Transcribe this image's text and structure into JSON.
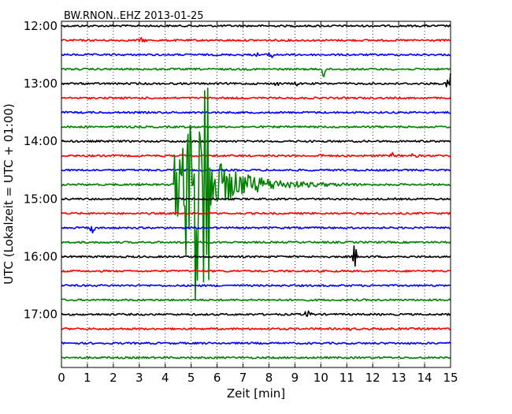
{
  "chart_data": {
    "type": "line",
    "title": "BW.RNON..EHZ 2013-01-25",
    "xlabel": "Zeit  [min]",
    "ylabel": "UTC (Lokalzeit = UTC + 01:00)",
    "xlim": [
      0,
      15
    ],
    "x_ticks": [
      0,
      1,
      2,
      3,
      4,
      5,
      6,
      7,
      8,
      9,
      10,
      11,
      12,
      13,
      14,
      15
    ],
    "ylim_hours": [
      11.92,
      17.92
    ],
    "y_ticks": [
      {
        "hour": 12,
        "label": "12:00"
      },
      {
        "hour": 13,
        "label": "13:00"
      },
      {
        "hour": 14,
        "label": "14:00"
      },
      {
        "hour": 15,
        "label": "15:00"
      },
      {
        "hour": 16,
        "label": "16:00"
      },
      {
        "hour": 17,
        "label": "17:00"
      }
    ],
    "grid": "vertical dotted",
    "trace_interval_min": 15,
    "trace_colors": [
      "#000000",
      "#ff0000",
      "#0000ff",
      "#008000"
    ],
    "trace_start_hour": 12,
    "trace_count": 24,
    "events": [
      {
        "trace": 1,
        "x": 3.1,
        "amp": 0.4,
        "dur": 0.3
      },
      {
        "trace": 2,
        "x": 8.1,
        "amp": 1.3,
        "dur": 0.15
      },
      {
        "trace": 2,
        "x": 7.6,
        "amp": 0.4,
        "dur": 0.2
      },
      {
        "trace": 3,
        "x": 10.1,
        "amp": 1.6,
        "dur": 0.12
      },
      {
        "trace": 4,
        "x": 14.95,
        "amp": 2.2,
        "dur": 0.15
      },
      {
        "trace": 4,
        "x": 8.3,
        "amp": 0.4,
        "dur": 0.2
      },
      {
        "trace": 4,
        "x": 9.1,
        "amp": 0.4,
        "dur": 0.2
      },
      {
        "trace": 9,
        "x": 12.75,
        "amp": 0.8,
        "dur": 0.1
      },
      {
        "trace": 9,
        "x": 13.6,
        "amp": 0.5,
        "dur": 0.2
      },
      {
        "trace": 9,
        "x": 10.0,
        "amp": 0.3,
        "dur": 0.2
      },
      {
        "trace": 14,
        "x": 1.2,
        "amp": 0.7,
        "dur": 0.2
      },
      {
        "trace": 16,
        "x": 11.3,
        "amp": 2.0,
        "dur": 0.12
      },
      {
        "trace": 20,
        "x": 9.5,
        "amp": 0.6,
        "dur": 0.3
      },
      {
        "trace": 21,
        "x": 11.2,
        "amp": 0.3,
        "dur": 0.3
      }
    ],
    "earthquake": {
      "trace": 11,
      "onset_min": 4.35,
      "peak_end_min": 5.95,
      "coda_end_min": 11.5,
      "color": "#008000"
    }
  }
}
